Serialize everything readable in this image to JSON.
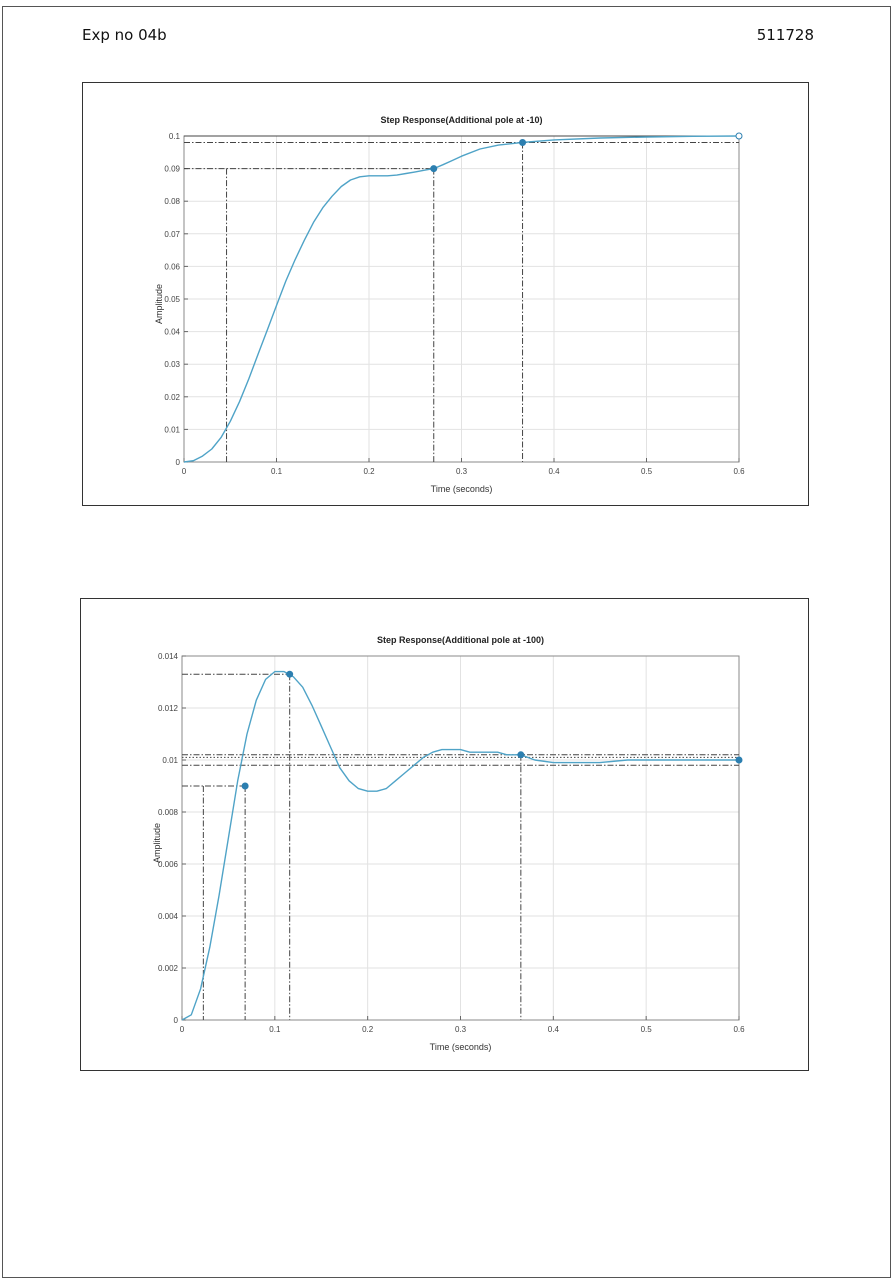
{
  "header": {
    "left_text": "Exp no 04b",
    "right_text": "511728"
  },
  "chart_data": [
    {
      "type": "line",
      "title": "Step Response(Additional pole at -10)",
      "xlabel": "Time (seconds)",
      "ylabel": "Amplitude",
      "xlim": [
        0,
        0.6
      ],
      "ylim": [
        0,
        0.1
      ],
      "grid": true,
      "x_ticks": [
        0,
        0.1,
        0.2,
        0.3,
        0.4,
        0.5,
        0.6
      ],
      "x_tick_labels": [
        "0",
        "0.1",
        "0.2",
        "0.3",
        "0.4",
        "0.5",
        "0.6"
      ],
      "y_ticks": [
        0,
        0.01,
        0.02,
        0.03,
        0.04,
        0.05,
        0.06,
        0.07,
        0.08,
        0.09,
        0.1
      ],
      "y_tick_labels": [
        "0",
        "0.01",
        "0.02",
        "0.03",
        "0.04",
        "0.05",
        "0.06",
        "0.07",
        "0.08",
        "0.09",
        "0.1"
      ],
      "series": [
        {
          "color": "#4fa3c7",
          "x": [
            0,
            0.01,
            0.02,
            0.03,
            0.04,
            0.05,
            0.06,
            0.07,
            0.08,
            0.09,
            0.1,
            0.11,
            0.12,
            0.13,
            0.14,
            0.15,
            0.16,
            0.17,
            0.18,
            0.19,
            0.2,
            0.21,
            0.22,
            0.23,
            0.24,
            0.25,
            0.26,
            0.27,
            0.28,
            0.29,
            0.3,
            0.32,
            0.34,
            0.365,
            0.4,
            0.45,
            0.5,
            0.55,
            0.6
          ],
          "y": [
            0,
            0.0004,
            0.0018,
            0.004,
            0.0075,
            0.0125,
            0.0185,
            0.0255,
            0.033,
            0.0405,
            0.048,
            0.0555,
            0.062,
            0.068,
            0.0735,
            0.078,
            0.0815,
            0.0845,
            0.0865,
            0.0875,
            0.0878,
            0.0878,
            0.0878,
            0.088,
            0.0885,
            0.089,
            0.0895,
            0.09,
            0.0912,
            0.0925,
            0.0938,
            0.096,
            0.0972,
            0.098,
            0.0988,
            0.0994,
            0.0997,
            0.0999,
            0.1
          ]
        }
      ],
      "markers": [
        {
          "x": 0.27,
          "y": 0.09
        },
        {
          "x": 0.366,
          "y": 0.098
        },
        {
          "x": 0.6,
          "y": 0.1,
          "hollow": true
        }
      ],
      "hlines": [
        {
          "y": 0.1,
          "style": "solid"
        },
        {
          "y": 0.098,
          "style": "dashdot"
        },
        {
          "y": 0.09,
          "style": "dashdot",
          "x_from": 0,
          "x_to": 0.27
        }
      ],
      "vlines": [
        {
          "x": 0.046,
          "y_from": 0,
          "y_to": 0.09
        },
        {
          "x": 0.27,
          "y_from": 0,
          "y_to": 0.09
        },
        {
          "x": 0.366,
          "y_from": 0,
          "y_to": 0.098
        }
      ]
    },
    {
      "type": "line",
      "title": "Step Response(Additional pole at -100)",
      "xlabel": "Time (seconds)",
      "ylabel": "Amplitude",
      "xlim": [
        0,
        0.6
      ],
      "ylim": [
        0,
        0.014
      ],
      "grid": true,
      "x_ticks": [
        0,
        0.1,
        0.2,
        0.3,
        0.4,
        0.5,
        0.6
      ],
      "x_tick_labels": [
        "0",
        "0.1",
        "0.2",
        "0.3",
        "0.4",
        "0.5",
        "0.6"
      ],
      "y_ticks": [
        0,
        0.002,
        0.004,
        0.006,
        0.008,
        0.01,
        0.012,
        0.014
      ],
      "y_tick_labels": [
        "0",
        "0.002",
        "0.004",
        "0.006",
        "0.008",
        "0.01",
        "0.012",
        "0.014"
      ],
      "series": [
        {
          "color": "#4fa3c7",
          "x": [
            0,
            0.01,
            0.02,
            0.03,
            0.04,
            0.05,
            0.06,
            0.07,
            0.08,
            0.09,
            0.1,
            0.11,
            0.115,
            0.12,
            0.13,
            0.14,
            0.15,
            0.16,
            0.17,
            0.18,
            0.19,
            0.2,
            0.21,
            0.22,
            0.23,
            0.24,
            0.25,
            0.26,
            0.27,
            0.28,
            0.29,
            0.3,
            0.31,
            0.32,
            0.33,
            0.34,
            0.35,
            0.365,
            0.38,
            0.4,
            0.42,
            0.45,
            0.48,
            0.5,
            0.55,
            0.6
          ],
          "y": [
            0,
            0.0002,
            0.0012,
            0.0028,
            0.0048,
            0.007,
            0.0092,
            0.011,
            0.0123,
            0.0131,
            0.0134,
            0.0134,
            0.0133,
            0.0132,
            0.0128,
            0.0121,
            0.0113,
            0.0105,
            0.0097,
            0.0092,
            0.0089,
            0.0088,
            0.0088,
            0.0089,
            0.0092,
            0.0095,
            0.0098,
            0.0101,
            0.0103,
            0.0104,
            0.0104,
            0.0104,
            0.0103,
            0.0103,
            0.0103,
            0.0103,
            0.0102,
            0.0102,
            0.01,
            0.0099,
            0.0099,
            0.0099,
            0.01,
            0.01,
            0.01,
            0.01
          ]
        }
      ],
      "markers": [
        {
          "x": 0.068,
          "y": 0.009
        },
        {
          "x": 0.116,
          "y": 0.0133
        },
        {
          "x": 0.365,
          "y": 0.0102
        },
        {
          "x": 0.6,
          "y": 0.01
        }
      ],
      "hlines": [
        {
          "y": 0.0133,
          "style": "dashdot",
          "x_from": 0,
          "x_to": 0.116
        },
        {
          "y": 0.0102,
          "style": "dashdot"
        },
        {
          "y": 0.0101,
          "style": "dotted"
        },
        {
          "y": 0.0098,
          "style": "dashdot"
        },
        {
          "y": 0.009,
          "style": "dashdot",
          "x_from": 0,
          "x_to": 0.068
        }
      ],
      "vlines": [
        {
          "x": 0.023,
          "y_from": 0,
          "y_to": 0.009
        },
        {
          "x": 0.068,
          "y_from": 0,
          "y_to": 0.009
        },
        {
          "x": 0.116,
          "y_from": 0,
          "y_to": 0.0133
        },
        {
          "x": 0.365,
          "y_from": 0,
          "y_to": 0.0102
        }
      ]
    }
  ]
}
